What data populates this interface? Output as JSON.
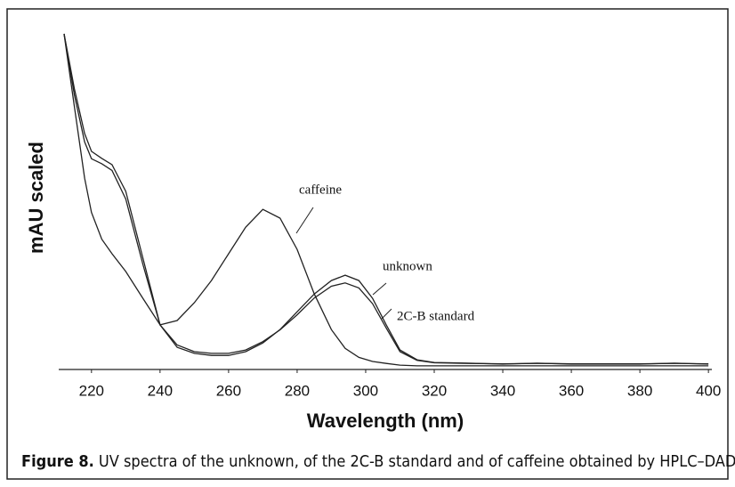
{
  "chart_data": {
    "type": "line",
    "y_label": "mAU scaled",
    "x_label": "Wavelength (nm)",
    "x": [
      212,
      215,
      218,
      220,
      223,
      226,
      230,
      235,
      240,
      245,
      250,
      255,
      260,
      265,
      270,
      275,
      280,
      285,
      290,
      294,
      298,
      302,
      306,
      310,
      315,
      320,
      330,
      340,
      350,
      360,
      370,
      380,
      390,
      400
    ],
    "series": [
      {
        "name": "caffeine",
        "color": "#222222",
        "values": [
          99.2,
          77.5,
          56.2,
          46,
          38,
          33.7,
          28.4,
          20.4,
          12.5,
          13.8,
          19.1,
          25.7,
          33.7,
          41.6,
          46.9,
          44.3,
          35.0,
          21.7,
          11.1,
          5.5,
          2.8,
          1.6,
          1.0,
          0.5,
          0.3,
          0.3,
          0.3,
          0.3,
          0.3,
          0.3,
          0.3,
          0.3,
          0.3,
          0.3
        ]
      },
      {
        "name": "unknown",
        "color": "#222222",
        "values": [
          99.2,
          82.8,
          69.5,
          64.2,
          62.1,
          60.2,
          52.3,
          32.4,
          12.5,
          5.8,
          4.0,
          3.4,
          3.4,
          4.5,
          7.1,
          11.1,
          16.4,
          21.7,
          25.7,
          27.3,
          25.7,
          20.4,
          12.5,
          5.0,
          2.1,
          1.3,
          1.1,
          0.8,
          1.1,
          0.8,
          0.8,
          0.8,
          1.1,
          0.8
        ]
      },
      {
        "name": "2C-B standard",
        "color": "#222222",
        "values": [
          99.2,
          81,
          67,
          62,
          60.5,
          58.5,
          50,
          30.5,
          12.5,
          6.5,
          4.5,
          4.0,
          4.0,
          5.0,
          7.5,
          11.0,
          15.5,
          20.5,
          24.0,
          25.0,
          23.5,
          18.8,
          11.5,
          4.5,
          1.9,
          1.2,
          1.0,
          0.9,
          1.0,
          0.9,
          0.9,
          0.9,
          1.0,
          0.9
        ]
      }
    ],
    "xlim": [
      212,
      401
    ],
    "xticks": [
      220,
      240,
      260,
      280,
      300,
      320,
      340,
      360,
      380,
      400
    ],
    "ylim": [
      0,
      100
    ],
    "caption_label": "Figure 8.",
    "caption_text": "UV spectra of the unknown, of the 2C-B standard and of caffeine obtained by HPLC–DAD."
  }
}
